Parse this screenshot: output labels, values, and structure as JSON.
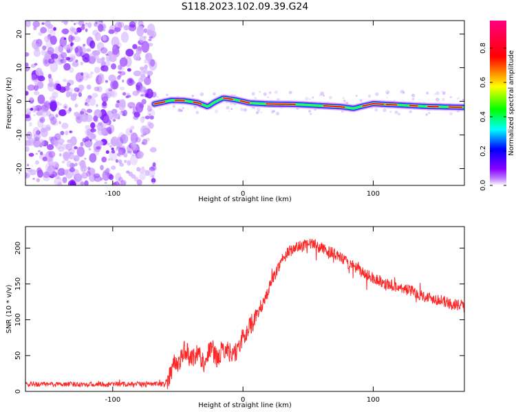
{
  "chart_data": [
    {
      "type": "heatmap",
      "title": "S118.2023.102.09.39.G24",
      "xlabel": "Height of straight line (km)",
      "ylabel": "Frequency (Hz)",
      "xlim": [
        -167,
        170
      ],
      "ylim": [
        -25,
        24
      ],
      "xticks": [
        -100,
        0,
        100
      ],
      "yticks": [
        -20,
        -10,
        0,
        10,
        20
      ],
      "colorbar": {
        "label": "Normalized spectral amplitude",
        "range": [
          0,
          1
        ],
        "ticks": [
          "0.0",
          "0.2",
          "0.4",
          "0.6",
          "0.8"
        ],
        "colormap": [
          "#ffffff",
          "#8800ff",
          "#0000ff",
          "#00ffff",
          "#00ff00",
          "#ffff00",
          "#ff0000",
          "#ff0080"
        ]
      },
      "noise_region_x": [
        -167,
        -68
      ],
      "signal_ridge": {
        "x": [
          -68,
          -55,
          -45,
          -35,
          -27,
          -22,
          -15,
          -5,
          5,
          20,
          40,
          60,
          75,
          85,
          92,
          100,
          120,
          140,
          170
        ],
        "y": [
          -0.8,
          0.3,
          0.2,
          -0.4,
          -1.6,
          -0.3,
          1.0,
          0.4,
          -0.5,
          -0.8,
          -0.9,
          -1.3,
          -1.6,
          -2.1,
          -1.4,
          -0.7,
          -1.1,
          -1.5,
          -1.8
        ]
      }
    },
    {
      "type": "line",
      "xlabel": "Height of straight line (km)",
      "ylabel": "SNR (10 * v/v)",
      "xlim": [
        -167,
        170
      ],
      "ylim": [
        0,
        230
      ],
      "xticks": [
        -100,
        0,
        100
      ],
      "yticks": [
        0,
        50,
        100,
        150,
        200
      ],
      "color": "#ff0000",
      "series": [
        {
          "x": [
            -167,
            -100,
            -60,
            -57,
            -53,
            -50,
            -45,
            -40,
            -35,
            -30,
            -25,
            -20,
            -15,
            -10,
            -5,
            0,
            5,
            10,
            15,
            20,
            25,
            30,
            35,
            40,
            45,
            50,
            55,
            60,
            70,
            80,
            90,
            100,
            110,
            120,
            130,
            140,
            150,
            160,
            170
          ],
          "values": [
            10,
            10,
            10,
            20,
            40,
            35,
            60,
            45,
            55,
            40,
            60,
            45,
            60,
            55,
            55,
            75,
            90,
            105,
            120,
            145,
            165,
            185,
            195,
            200,
            203,
            205,
            205,
            200,
            192,
            180,
            168,
            158,
            150,
            145,
            140,
            132,
            128,
            122,
            118
          ]
        }
      ]
    }
  ]
}
